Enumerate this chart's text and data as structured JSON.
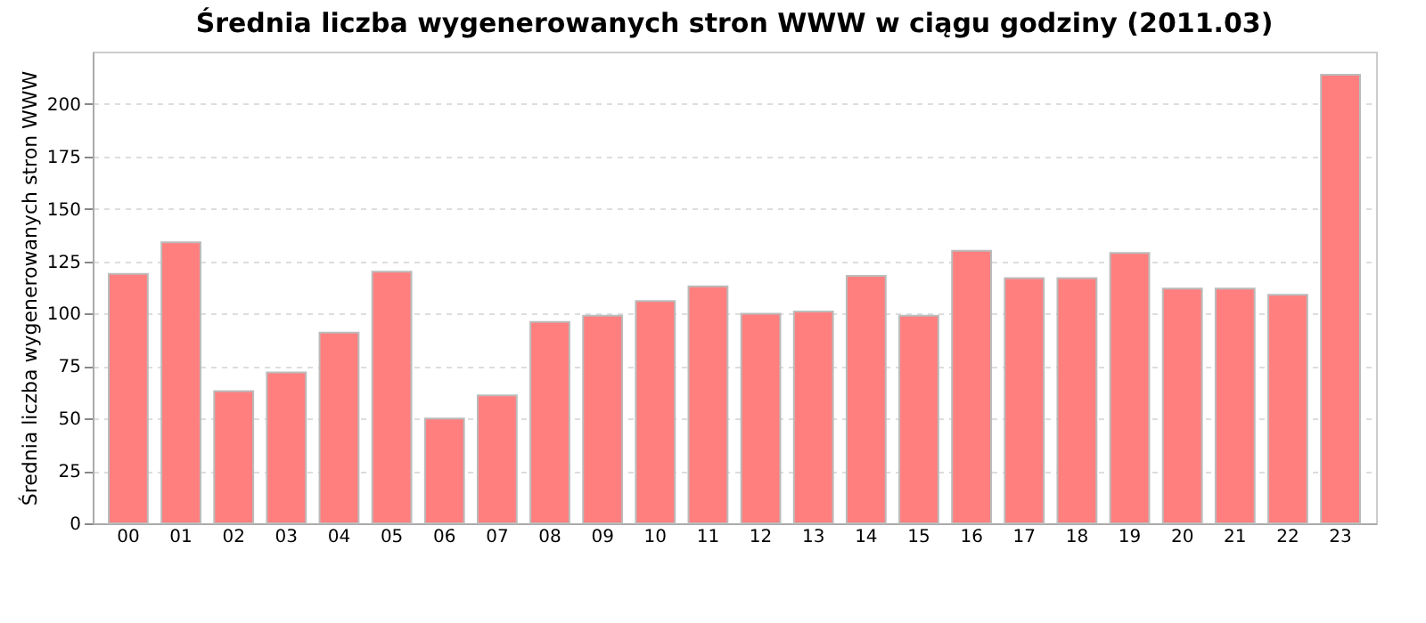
{
  "chart_data": {
    "type": "bar",
    "title": "Średnia liczba wygenerowanych stron WWW w ciągu godziny (2011.03)",
    "ylabel": "Średnia liczba wygenerowanych stron WWW",
    "categories": [
      "00",
      "01",
      "02",
      "03",
      "04",
      "05",
      "06",
      "07",
      "08",
      "09",
      "10",
      "11",
      "12",
      "13",
      "14",
      "15",
      "16",
      "17",
      "18",
      "19",
      "20",
      "21",
      "22",
      "23"
    ],
    "values": [
      119,
      134,
      63,
      72,
      91,
      120,
      50,
      61,
      96,
      99,
      106,
      113,
      100,
      101,
      118,
      99,
      130,
      117,
      117,
      129,
      112,
      112,
      109,
      214
    ],
    "color": "#ff7f7f",
    "ylim": [
      0,
      225
    ],
    "yticks": [
      0,
      25,
      50,
      75,
      100,
      125,
      150,
      175,
      200
    ],
    "grid": "y"
  }
}
